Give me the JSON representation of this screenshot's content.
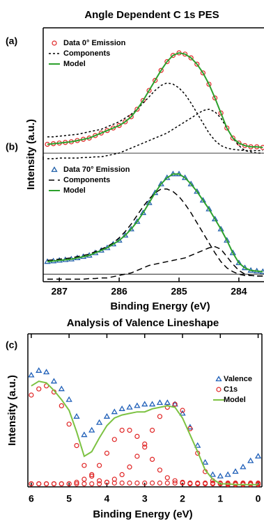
{
  "chart_data": [
    {
      "type": "line",
      "title": "Angle Dependent C 1s PES",
      "panel": "(a)",
      "ylabel": "Intensity (a.u.)",
      "xlim": [
        287.27,
        283.58
      ],
      "ylim": [
        -0.055,
        1.0
      ],
      "zero_line": true,
      "x": [
        287.2,
        287.1,
        287.0,
        286.9,
        286.8,
        286.7,
        286.6,
        286.5,
        286.4,
        286.3,
        286.2,
        286.1,
        286.0,
        285.9,
        285.8,
        285.7,
        285.6,
        285.5,
        285.4,
        285.3,
        285.2,
        285.1,
        285.0,
        284.9,
        284.8,
        284.7,
        284.6,
        284.5,
        284.4,
        284.3,
        284.2,
        284.1,
        284.0,
        283.9,
        283.8,
        283.7,
        283.6
      ],
      "series": [
        {
          "name": "Data 0° Emission",
          "color": "#e02424",
          "marker": "circle",
          "values": [
            0.07,
            0.075,
            0.08,
            0.085,
            0.09,
            0.1,
            0.11,
            0.12,
            0.14,
            0.16,
            0.18,
            0.2,
            0.22,
            0.25,
            0.29,
            0.35,
            0.42,
            0.5,
            0.58,
            0.66,
            0.73,
            0.78,
            0.8,
            0.79,
            0.76,
            0.71,
            0.64,
            0.55,
            0.44,
            0.32,
            0.2,
            0.12,
            0.08,
            0.06,
            0.05,
            0.05,
            0.045
          ]
        },
        {
          "name": "Components",
          "color": "#000000",
          "dash": "3,3",
          "values": [
            0.13,
            0.13,
            0.135,
            0.14,
            0.145,
            0.15,
            0.16,
            0.17,
            0.18,
            0.19,
            0.21,
            0.23,
            0.25,
            0.28,
            0.31,
            0.35,
            0.4,
            0.45,
            0.5,
            0.54,
            0.56,
            0.55,
            0.52,
            0.47,
            0.4,
            0.32,
            0.24,
            0.16,
            0.1,
            0.06,
            0.04,
            0.03,
            0.025,
            0.02,
            0.02,
            0.02,
            0.02
          ]
        },
        {
          "color": "#000000",
          "dash": "3,3",
          "values": [
            -0.045,
            -0.045,
            -0.04,
            -0.04,
            -0.04,
            -0.04,
            -0.035,
            -0.035,
            -0.03,
            -0.03,
            -0.02,
            -0.01,
            0,
            0.02,
            0.04,
            0.06,
            0.08,
            0.1,
            0.12,
            0.14,
            0.16,
            0.19,
            0.22,
            0.25,
            0.28,
            0.31,
            0.34,
            0.35,
            0.33,
            0.28,
            0.2,
            0.12,
            0.06,
            0.02,
            0.01,
            0,
            0
          ]
        },
        {
          "name": "Model",
          "color": "#2ca02c",
          "values": [
            0.07,
            0.075,
            0.08,
            0.085,
            0.09,
            0.1,
            0.11,
            0.12,
            0.14,
            0.16,
            0.18,
            0.2,
            0.22,
            0.25,
            0.29,
            0.35,
            0.42,
            0.5,
            0.58,
            0.66,
            0.73,
            0.78,
            0.8,
            0.79,
            0.76,
            0.71,
            0.64,
            0.55,
            0.44,
            0.32,
            0.2,
            0.12,
            0.08,
            0.06,
            0.05,
            0.05,
            0.045
          ]
        }
      ]
    },
    {
      "type": "line",
      "panel": "(b)",
      "xlabel": "Binding Energy (eV)",
      "xlim": [
        287.27,
        283.58
      ],
      "ylim": [
        -0.06,
        0.94
      ],
      "zero_line": true,
      "xticks": [
        287,
        286,
        285,
        284
      ],
      "x": [
        287.2,
        287.1,
        287.0,
        286.9,
        286.8,
        286.7,
        286.6,
        286.5,
        286.4,
        286.3,
        286.2,
        286.1,
        286.0,
        285.9,
        285.8,
        285.7,
        285.6,
        285.5,
        285.4,
        285.3,
        285.2,
        285.1,
        285.0,
        284.9,
        284.8,
        284.7,
        284.6,
        284.5,
        284.4,
        284.3,
        284.2,
        284.1,
        284.0,
        283.9,
        283.8,
        283.7,
        283.6
      ],
      "series": [
        {
          "name": "Data 70° Emission",
          "color": "#1f5fa8",
          "marker": "triangle",
          "values": [
            0.1,
            0.105,
            0.11,
            0.115,
            0.12,
            0.13,
            0.14,
            0.15,
            0.17,
            0.19,
            0.21,
            0.24,
            0.27,
            0.31,
            0.36,
            0.42,
            0.49,
            0.57,
            0.65,
            0.72,
            0.77,
            0.8,
            0.8,
            0.77,
            0.72,
            0.66,
            0.59,
            0.52,
            0.44,
            0.36,
            0.27,
            0.17,
            0.09,
            0.05,
            0.03,
            0.025,
            0.02
          ]
        },
        {
          "name": "Components",
          "color": "#000000",
          "dash": "8,5",
          "values": [
            0.11,
            0.115,
            0.12,
            0.125,
            0.13,
            0.14,
            0.15,
            0.16,
            0.18,
            0.2,
            0.22,
            0.25,
            0.29,
            0.34,
            0.4,
            0.47,
            0.54,
            0.6,
            0.65,
            0.68,
            0.68,
            0.66,
            0.62,
            0.56,
            0.49,
            0.41,
            0.33,
            0.25,
            0.17,
            0.1,
            0.05,
            0.02,
            0,
            -0.01,
            -0.01,
            -0.015,
            -0.015
          ]
        },
        {
          "color": "#000000",
          "dash": "8,5",
          "values": [
            -0.04,
            -0.04,
            -0.04,
            -0.04,
            -0.04,
            -0.04,
            -0.04,
            -0.035,
            -0.035,
            -0.03,
            -0.03,
            -0.02,
            -0.01,
            0,
            0.01,
            0.03,
            0.05,
            0.07,
            0.08,
            0.09,
            0.1,
            0.11,
            0.12,
            0.13,
            0.15,
            0.17,
            0.19,
            0.21,
            0.22,
            0.2,
            0.14,
            0.08,
            0.03,
            0,
            -0.01,
            -0.015,
            -0.015
          ]
        },
        {
          "name": "Model",
          "color": "#2ca02c",
          "values": [
            0.1,
            0.105,
            0.11,
            0.115,
            0.12,
            0.13,
            0.14,
            0.15,
            0.17,
            0.19,
            0.21,
            0.24,
            0.27,
            0.31,
            0.36,
            0.42,
            0.49,
            0.57,
            0.65,
            0.72,
            0.77,
            0.8,
            0.8,
            0.77,
            0.72,
            0.66,
            0.59,
            0.52,
            0.44,
            0.36,
            0.27,
            0.17,
            0.09,
            0.05,
            0.03,
            0.025,
            0.02
          ]
        }
      ]
    },
    {
      "type": "line",
      "title": "Analysis of Valence Lineshape",
      "panel": "(c)",
      "ylabel": "Intensity (a.u.)",
      "xlabel": "Binding Energy (eV)",
      "xlim": [
        6.09,
        -0.1
      ],
      "ylim": [
        0,
        1
      ],
      "xticks": [
        6,
        5,
        4,
        3,
        2,
        1,
        0
      ],
      "x": [
        6.0,
        5.8,
        5.6,
        5.4,
        5.2,
        5.0,
        4.8,
        4.6,
        4.4,
        4.2,
        4.0,
        3.8,
        3.6,
        3.4,
        3.2,
        3.0,
        2.8,
        2.6,
        2.4,
        2.2,
        2.0,
        1.8,
        1.6,
        1.4,
        1.2,
        1.0,
        0.8,
        0.6,
        0.4,
        0.2,
        0.0
      ],
      "series": [
        {
          "name": "Valence",
          "color": "#1f5fb8",
          "marker": "triangle",
          "values": [
            0.73,
            0.76,
            0.75,
            0.69,
            0.64,
            0.57,
            0.46,
            0.34,
            0.37,
            0.42,
            0.46,
            0.49,
            0.51,
            0.52,
            0.53,
            0.54,
            0.54,
            0.55,
            0.55,
            0.54,
            0.48,
            0.39,
            0.27,
            0.16,
            0.08,
            0.07,
            0.08,
            0.1,
            0.13,
            0.17,
            0.2
          ]
        },
        {
          "name": "C1s",
          "color": "#e02424",
          "marker": "circle",
          "values": [
            0.6,
            0.64,
            0.66,
            0.62,
            0.53,
            0.41,
            0.27,
            0.14,
            0.07,
            0.04,
            0.03,
            0.025,
            0.025,
            0.025,
            0.025,
            0.025,
            0.025,
            0.025,
            0.025,
            0.025,
            0.025,
            0.025,
            0.025,
            0.025,
            0.025,
            0.025,
            0.025,
            0.025,
            0.025,
            0.025,
            0.025
          ]
        },
        {
          "color": "#e02424",
          "marker": "circle",
          "values": [
            0.02,
            0.02,
            0.02,
            0.02,
            0.02,
            0.02,
            0.03,
            0.05,
            0.08,
            0.14,
            0.22,
            0.31,
            0.37,
            0.37,
            0.33,
            0.26,
            0.18,
            0.11,
            0.06,
            0.04,
            0.03,
            0.02,
            0.02,
            0.02,
            0.02,
            0.02,
            0.02,
            0.02,
            0.02,
            0.02,
            0.02
          ]
        },
        {
          "color": "#e02424",
          "marker": "circle",
          "values": [
            0.02,
            0.02,
            0.02,
            0.02,
            0.02,
            0.02,
            0.02,
            0.02,
            0.02,
            0.02,
            0.03,
            0.05,
            0.08,
            0.13,
            0.2,
            0.28,
            0.37,
            0.46,
            0.52,
            0.54,
            0.5,
            0.38,
            0.22,
            0.1,
            0.04,
            0.02,
            0.015,
            0.015,
            0.015,
            0.015,
            0.015
          ]
        },
        {
          "name": "Model",
          "color": "#7cc242",
          "values": [
            0.66,
            0.69,
            0.68,
            0.63,
            0.57,
            0.5,
            0.36,
            0.2,
            0.23,
            0.32,
            0.4,
            0.45,
            0.47,
            0.48,
            0.49,
            0.49,
            0.51,
            0.52,
            0.53,
            0.52,
            0.45,
            0.34,
            0.23,
            0.11,
            0.05,
            0.02,
            0.02,
            0.015,
            0.015,
            0.015,
            0.015
          ]
        }
      ]
    }
  ]
}
